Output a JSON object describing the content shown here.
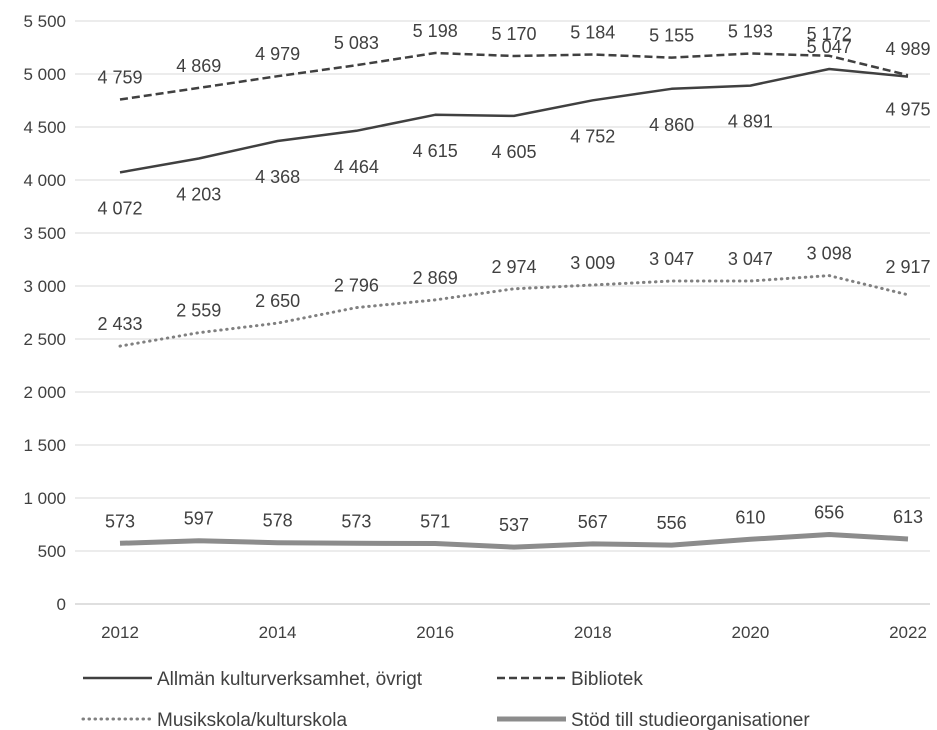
{
  "chart_data": {
    "type": "line",
    "title": "",
    "xlabel": "",
    "ylabel": "",
    "x": [
      2012,
      2013,
      2014,
      2015,
      2016,
      2017,
      2018,
      2019,
      2020,
      2021,
      2022
    ],
    "xticks": [
      "2012",
      "2014",
      "2016",
      "2018",
      "2020",
      "2022"
    ],
    "yticks": [
      "0",
      "500",
      "1 000",
      "1 500",
      "2 000",
      "2 500",
      "3 000",
      "3 500",
      "4 000",
      "4 500",
      "5 000",
      "5 500"
    ],
    "ylim": [
      0,
      5500
    ],
    "grid": true,
    "legend_position": "bottom",
    "series": [
      {
        "name": "Allmän  kulturverksamhet, övrigt",
        "style": "solid",
        "color": "#404040",
        "values": [
          4072,
          4203,
          4368,
          4464,
          4615,
          4605,
          4752,
          4860,
          4891,
          5047,
          4975
        ],
        "labels": [
          "4 072",
          "4 203",
          "4 368",
          "4 464",
          "4 615",
          "4 605",
          "4 752",
          "4 860",
          "4 891",
          "5 047",
          "4 975"
        ]
      },
      {
        "name": "Bibliotek",
        "style": "dashed",
        "color": "#404040",
        "values": [
          4759,
          4869,
          4979,
          5083,
          5198,
          5170,
          5184,
          5155,
          5193,
          5172,
          4989
        ],
        "labels": [
          "4 759",
          "4 869",
          "4 979",
          "5 083",
          "5 198",
          "5 170",
          "5 184",
          "5 155",
          "5 193",
          "5 172",
          "4 989"
        ]
      },
      {
        "name": "Musikskola/kulturskola",
        "style": "dotted",
        "color": "#808080",
        "values": [
          2433,
          2559,
          2650,
          2796,
          2869,
          2974,
          3009,
          3047,
          3047,
          3098,
          2917
        ],
        "labels": [
          "2 433",
          "2 559",
          "2 650",
          "2 796",
          "2 869",
          "2 974",
          "3 009",
          "3 047",
          "3 047",
          "3 098",
          "2 917"
        ]
      },
      {
        "name": "Stöd till studieorganisationer",
        "style": "thick",
        "color": "#8c8c8c",
        "values": [
          573,
          597,
          578,
          573,
          571,
          537,
          567,
          556,
          610,
          656,
          613
        ],
        "labels": [
          "573",
          "597",
          "578",
          "573",
          "571",
          "537",
          "567",
          "556",
          "610",
          "656",
          "613"
        ]
      }
    ]
  }
}
